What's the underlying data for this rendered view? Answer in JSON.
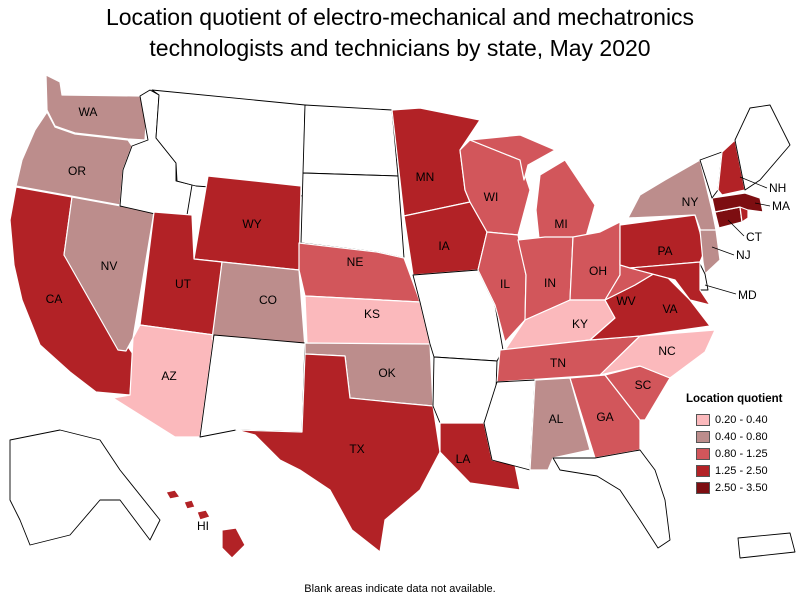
{
  "title_lines": [
    "Location quotient of electro-mechanical and mechatronics",
    "technologists and technicians by state, May 2020"
  ],
  "legend": {
    "title": "Location quotient",
    "bins": [
      {
        "label": "0.20 - 0.40",
        "color": "#fbb9bc"
      },
      {
        "label": "0.40 - 0.80",
        "color": "#bc8d8c"
      },
      {
        "label": "0.80 - 1.25",
        "color": "#d2565b"
      },
      {
        "label": "1.25 - 2.50",
        "color": "#b22226"
      },
      {
        "label": "2.50 - 3.50",
        "color": "#7d0e11"
      }
    ]
  },
  "footnote": "Blank areas indicate data not available.",
  "states": [
    {
      "code": "WA",
      "bin": 1
    },
    {
      "code": "OR",
      "bin": 1
    },
    {
      "code": "CA",
      "bin": 3
    },
    {
      "code": "NV",
      "bin": 1
    },
    {
      "code": "ID",
      "bin": null
    },
    {
      "code": "MT",
      "bin": null
    },
    {
      "code": "WY",
      "bin": 3
    },
    {
      "code": "UT",
      "bin": 3
    },
    {
      "code": "AZ",
      "bin": 0
    },
    {
      "code": "CO",
      "bin": 1
    },
    {
      "code": "NM",
      "bin": null
    },
    {
      "code": "ND",
      "bin": null
    },
    {
      "code": "SD",
      "bin": null
    },
    {
      "code": "NE",
      "bin": 2
    },
    {
      "code": "KS",
      "bin": 0
    },
    {
      "code": "OK",
      "bin": 1
    },
    {
      "code": "TX",
      "bin": 3
    },
    {
      "code": "MN",
      "bin": 3
    },
    {
      "code": "IA",
      "bin": 3
    },
    {
      "code": "MO",
      "bin": null
    },
    {
      "code": "AR",
      "bin": null
    },
    {
      "code": "LA",
      "bin": 3
    },
    {
      "code": "WI",
      "bin": 2
    },
    {
      "code": "IL",
      "bin": 2
    },
    {
      "code": "MI",
      "bin": 2
    },
    {
      "code": "IN",
      "bin": 2
    },
    {
      "code": "OH",
      "bin": 2
    },
    {
      "code": "KY",
      "bin": 0
    },
    {
      "code": "TN",
      "bin": 2
    },
    {
      "code": "MS",
      "bin": null
    },
    {
      "code": "AL",
      "bin": 1
    },
    {
      "code": "GA",
      "bin": 2
    },
    {
      "code": "FL",
      "bin": null
    },
    {
      "code": "SC",
      "bin": 2
    },
    {
      "code": "NC",
      "bin": 0
    },
    {
      "code": "VA",
      "bin": 3
    },
    {
      "code": "WV",
      "bin": 2
    },
    {
      "code": "PA",
      "bin": 3
    },
    {
      "code": "NY",
      "bin": 1
    },
    {
      "code": "NJ",
      "bin": 1
    },
    {
      "code": "DE",
      "bin": null
    },
    {
      "code": "MD",
      "bin": 3
    },
    {
      "code": "CT",
      "bin": 4
    },
    {
      "code": "RI",
      "bin": 3
    },
    {
      "code": "MA",
      "bin": 4
    },
    {
      "code": "VT",
      "bin": null
    },
    {
      "code": "NH",
      "bin": 3
    },
    {
      "code": "ME",
      "bin": null
    },
    {
      "code": "AK",
      "bin": null
    },
    {
      "code": "HI",
      "bin": 3
    },
    {
      "code": "PR",
      "bin": null
    }
  ],
  "labels": [
    "WA",
    "OR",
    "CA",
    "NV",
    "WY",
    "UT",
    "AZ",
    "CO",
    "NE",
    "KS",
    "OK",
    "TX",
    "MN",
    "IA",
    "LA",
    "WI",
    "IL",
    "MI",
    "IN",
    "OH",
    "KY",
    "TN",
    "AL",
    "GA",
    "SC",
    "NC",
    "VA",
    "WV",
    "PA",
    "NY",
    "NJ",
    "MD",
    "CT",
    "MA",
    "NH",
    "HI"
  ]
}
